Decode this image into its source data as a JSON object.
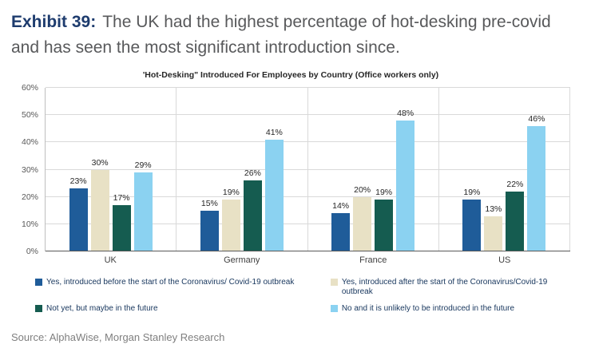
{
  "header": {
    "exhibit_label": "Exhibit 39:",
    "title_text": "The UK had the highest percentage of hot-desking pre-covid and has seen the most significant introduction since."
  },
  "chart_data": {
    "type": "bar",
    "title": "'Hot-Desking\" Introduced For Employees by Country (Office workers only)",
    "categories": [
      "UK",
      "Germany",
      "France",
      "US"
    ],
    "series": [
      {
        "name": "Yes, introduced before the start of the Coronavirus/ Covid-19 outbreak",
        "color": "#1F5C99",
        "values": [
          23,
          15,
          14,
          19
        ]
      },
      {
        "name": "Yes, introduced after the start of the Coronavirus/Covid-19 outbreak",
        "color": "#E8E1C5",
        "values": [
          30,
          19,
          20,
          13
        ]
      },
      {
        "name": "Not yet, but maybe in the future",
        "color": "#155C50",
        "values": [
          17,
          26,
          19,
          22
        ]
      },
      {
        "name": "No and it is unlikely to be introduced in the future",
        "color": "#8BD2F1",
        "values": [
          29,
          41,
          48,
          46
        ]
      }
    ],
    "ylim": [
      0,
      60
    ],
    "ytick_step": 10,
    "value_suffix": "%",
    "grid": true,
    "legend_position": "bottom"
  },
  "source": "Source: AlphaWise, Morgan Stanley Research"
}
